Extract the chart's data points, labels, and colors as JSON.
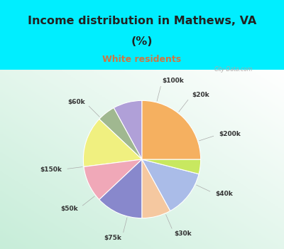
{
  "title_line1": "Income distribution in Mathews, VA",
  "title_line2": "(%)",
  "subtitle": "White residents",
  "title_color": "#222222",
  "subtitle_color": "#cc7744",
  "bg_cyan": "#00eeff",
  "labels": [
    "$100k",
    "$20k",
    "$200k",
    "$40k",
    "$30k",
    "$75k",
    "$50k",
    "$150k",
    "$60k"
  ],
  "sizes": [
    8,
    5,
    14,
    10,
    13,
    8,
    13,
    4,
    25
  ],
  "colors": [
    "#b0a0d8",
    "#a0b890",
    "#f0f080",
    "#f0a8b8",
    "#8888cc",
    "#f5c8a0",
    "#aabce8",
    "#c8e860",
    "#f5b060"
  ],
  "startangle": 90,
  "figsize": [
    4.0,
    3.5
  ],
  "dpi": 100
}
